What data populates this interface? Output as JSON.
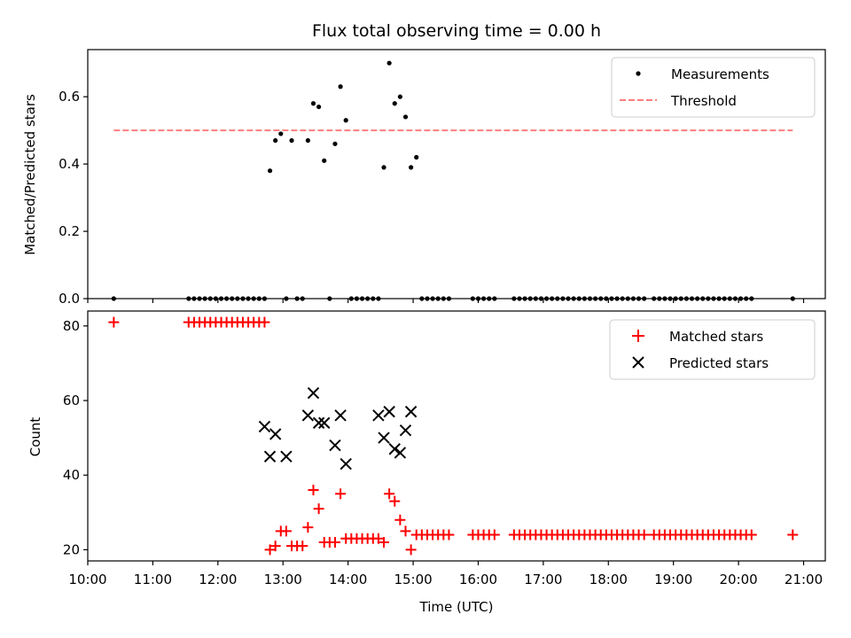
{
  "chart_data": [
    {
      "type": "scatter",
      "title": "Flux total observing time = 0.00 h",
      "xlabel": "",
      "ylabel": "Matched/Predicted stars",
      "xlim": [
        "10:00",
        "21:20"
      ],
      "ylim": [
        0,
        0.74
      ],
      "yticks": [
        "0.0",
        "0.2",
        "0.4",
        "0.6"
      ],
      "grid": false,
      "legend": "top-right",
      "series": [
        {
          "name": "Measurements",
          "marker": "dot",
          "color": "#000000",
          "x": [
            "10:24",
            "11:33",
            "11:38",
            "11:43",
            "11:48",
            "11:53",
            "11:58",
            "12:03",
            "12:08",
            "12:13",
            "12:18",
            "12:23",
            "12:28",
            "12:33",
            "12:38",
            "12:43",
            "12:48",
            "12:53",
            "12:58",
            "13:03",
            "13:08",
            "13:13",
            "13:18",
            "13:23",
            "13:28",
            "13:33",
            "13:38",
            "13:43",
            "13:48",
            "13:53",
            "13:58",
            "14:03",
            "14:08",
            "14:13",
            "14:18",
            "14:23",
            "14:28",
            "14:33",
            "14:38",
            "14:43",
            "14:48",
            "14:53",
            "14:58",
            "15:03",
            "15:08",
            "15:13",
            "15:18",
            "15:23",
            "15:28",
            "15:33",
            "15:55",
            "16:00",
            "16:05",
            "16:10",
            "16:15",
            "16:33",
            "16:38",
            "16:43",
            "16:48",
            "16:53",
            "16:58",
            "17:03",
            "17:08",
            "17:13",
            "17:18",
            "17:23",
            "17:28",
            "17:33",
            "17:38",
            "17:43",
            "17:48",
            "17:53",
            "17:58",
            "18:03",
            "18:08",
            "18:13",
            "18:18",
            "18:23",
            "18:28",
            "18:33",
            "18:42",
            "18:47",
            "18:52",
            "18:57",
            "19:02",
            "19:07",
            "19:12",
            "19:17",
            "19:22",
            "19:27",
            "19:32",
            "19:37",
            "19:42",
            "19:47",
            "19:52",
            "19:57",
            "20:02",
            "20:07",
            "20:12",
            "20:50"
          ],
          "y": [
            0,
            0,
            0,
            0,
            0,
            0,
            0,
            0,
            0,
            0,
            0,
            0,
            0,
            0,
            0,
            0,
            0.38,
            0.47,
            0.49,
            0,
            0.47,
            0,
            0,
            0.47,
            0.58,
            0.57,
            0.41,
            0,
            0.46,
            0.63,
            0.53,
            0,
            0,
            0,
            0,
            0,
            0,
            0.39,
            0.7,
            0.58,
            0.6,
            0.54,
            0.39,
            0.42,
            0,
            0,
            0,
            0,
            0,
            0,
            0,
            0,
            0,
            0,
            0,
            0,
            0,
            0,
            0,
            0,
            0,
            0,
            0,
            0,
            0,
            0,
            0,
            0,
            0,
            0,
            0,
            0,
            0,
            0,
            0,
            0,
            0,
            0,
            0,
            0,
            0,
            0,
            0,
            0,
            0,
            0,
            0,
            0,
            0,
            0,
            0,
            0,
            0,
            0,
            0,
            0,
            0,
            0,
            0,
            0
          ]
        },
        {
          "name": "Threshold",
          "type": "line",
          "style": "dashed",
          "color": "#ff7f7f",
          "x": [
            "10:24",
            "20:50"
          ],
          "y": [
            0.5,
            0.5
          ]
        }
      ]
    },
    {
      "type": "scatter",
      "title": "",
      "xlabel": "Time (UTC)",
      "ylabel": "Count",
      "xlim": [
        "10:00",
        "21:20"
      ],
      "ylim": [
        17,
        84
      ],
      "xticks": [
        "10:00",
        "11:00",
        "12:00",
        "13:00",
        "14:00",
        "15:00",
        "16:00",
        "17:00",
        "18:00",
        "19:00",
        "20:00",
        "21:00"
      ],
      "yticks": [
        "20",
        "40",
        "60",
        "80"
      ],
      "grid": false,
      "legend": "top-right",
      "series": [
        {
          "name": "Matched stars",
          "marker": "plus",
          "color": "#ff0000",
          "x": [
            "10:24",
            "11:33",
            "11:38",
            "11:43",
            "11:48",
            "11:53",
            "11:58",
            "12:03",
            "12:08",
            "12:13",
            "12:18",
            "12:23",
            "12:28",
            "12:33",
            "12:38",
            "12:43",
            "12:48",
            "12:53",
            "12:58",
            "13:03",
            "13:08",
            "13:13",
            "13:18",
            "13:23",
            "13:28",
            "13:33",
            "13:38",
            "13:43",
            "13:48",
            "13:53",
            "13:58",
            "14:03",
            "14:08",
            "14:13",
            "14:18",
            "14:23",
            "14:28",
            "14:33",
            "14:38",
            "14:43",
            "14:48",
            "14:53",
            "14:58",
            "15:03",
            "15:08",
            "15:13",
            "15:18",
            "15:23",
            "15:28",
            "15:33",
            "15:55",
            "16:00",
            "16:05",
            "16:10",
            "16:15",
            "16:33",
            "16:38",
            "16:43",
            "16:48",
            "16:53",
            "16:58",
            "17:03",
            "17:08",
            "17:13",
            "17:18",
            "17:23",
            "17:28",
            "17:33",
            "17:38",
            "17:43",
            "17:48",
            "17:53",
            "17:58",
            "18:03",
            "18:08",
            "18:13",
            "18:18",
            "18:23",
            "18:28",
            "18:33",
            "18:42",
            "18:47",
            "18:52",
            "18:57",
            "19:02",
            "19:07",
            "19:12",
            "19:17",
            "19:22",
            "19:27",
            "19:32",
            "19:37",
            "19:42",
            "19:47",
            "19:52",
            "19:57",
            "20:02",
            "20:07",
            "20:12",
            "20:50"
          ],
          "y": [
            81,
            81,
            81,
            81,
            81,
            81,
            81,
            81,
            81,
            81,
            81,
            81,
            81,
            81,
            81,
            81,
            20,
            21,
            25,
            25,
            21,
            21,
            21,
            26,
            36,
            31,
            22,
            22,
            22,
            35,
            23,
            23,
            23,
            23,
            23,
            23,
            23,
            22,
            35,
            33,
            28,
            25,
            20,
            24,
            24,
            24,
            24,
            24,
            24,
            24,
            24,
            24,
            24,
            24,
            24,
            24,
            24,
            24,
            24,
            24,
            24,
            24,
            24,
            24,
            24,
            24,
            24,
            24,
            24,
            24,
            24,
            24,
            24,
            24,
            24,
            24,
            24,
            24,
            24,
            24,
            24,
            24,
            24,
            24,
            24,
            24,
            24,
            24,
            24,
            24,
            24,
            24,
            24,
            24,
            24,
            24,
            24,
            24,
            24,
            24
          ]
        },
        {
          "name": "Predicted stars",
          "marker": "x",
          "color": "#000000",
          "x": [
            "12:43",
            "12:48",
            "12:53",
            "13:03",
            "13:23",
            "13:28",
            "13:33",
            "13:38",
            "13:48",
            "13:53",
            "13:58",
            "14:28",
            "14:33",
            "14:38",
            "14:43",
            "14:48",
            "14:53",
            "14:58"
          ],
          "y": [
            53,
            45,
            51,
            45,
            56,
            62,
            54,
            54,
            48,
            56,
            43,
            56,
            50,
            57,
            47,
            46,
            52,
            57
          ]
        }
      ]
    }
  ]
}
